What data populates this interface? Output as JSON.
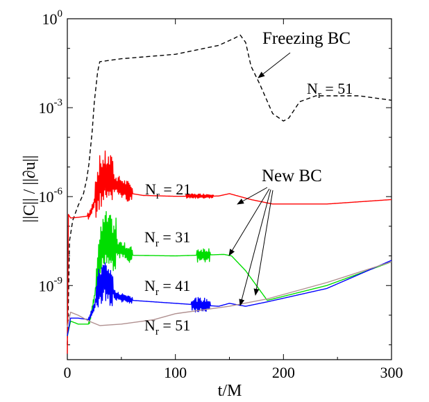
{
  "chart_data": {
    "type": "line",
    "title": "",
    "xlabel": "t/M",
    "ylabel": "||C|| / ||∂u||",
    "xlim": [
      0,
      300
    ],
    "ylim_log10": [
      -11.5,
      0
    ],
    "yscale": "log",
    "x_ticks": [
      {
        "value": 0,
        "label": "0"
      },
      {
        "value": 100,
        "label": "100"
      },
      {
        "value": 200,
        "label": "200"
      },
      {
        "value": 300,
        "label": "300"
      }
    ],
    "y_ticks": [
      {
        "exp": 0,
        "base": "10",
        "sup": "0"
      },
      {
        "exp": -3,
        "base": "10",
        "sup": "-3"
      },
      {
        "exp": -6,
        "base": "10",
        "sup": "-6"
      },
      {
        "exp": -9,
        "base": "10",
        "sup": "-9"
      }
    ],
    "annotations": {
      "freezing": "Freezing BC",
      "new": "New BC",
      "nr_freeze": {
        "n": "N",
        "sub": "r",
        "rest": " = 51"
      },
      "nr21": {
        "n": "N",
        "sub": "r",
        "rest": " = 21"
      },
      "nr31": {
        "n": "N",
        "sub": "r",
        "rest": " = 31"
      },
      "nr41": {
        "n": "N",
        "sub": "r",
        "rest": " = 41"
      },
      "nr51": {
        "n": "N",
        "sub": "r",
        "rest": " = 51"
      }
    },
    "series": [
      {
        "color": "#000000",
        "dash": "6,4",
        "noise": [],
        "points": [
          [
            0,
            -11
          ],
          [
            1,
            -9.5
          ],
          [
            2,
            -7.5
          ],
          [
            5,
            -6.8
          ],
          [
            10,
            -6.3
          ],
          [
            15,
            -5.9
          ],
          [
            18,
            -5.4
          ],
          [
            20,
            -4.9
          ],
          [
            23,
            -3.8
          ],
          [
            25,
            -2.8
          ],
          [
            28,
            -1.8
          ],
          [
            30,
            -1.45
          ],
          [
            50,
            -1.35
          ],
          [
            100,
            -1.2
          ],
          [
            140,
            -0.9
          ],
          [
            155,
            -0.65
          ],
          [
            160,
            -0.55
          ],
          [
            165,
            -0.8
          ],
          [
            170,
            -1.6
          ],
          [
            178,
            -2.2
          ],
          [
            190,
            -3.2
          ],
          [
            200,
            -3.45
          ],
          [
            205,
            -3.35
          ],
          [
            215,
            -2.8
          ],
          [
            230,
            -2.6
          ],
          [
            270,
            -2.6
          ],
          [
            300,
            -2.75
          ]
        ]
      },
      {
        "color": "#ff0000",
        "dash": "",
        "noise": [
          [
            19,
            26,
            0.15
          ],
          [
            26,
            42,
            0.9
          ],
          [
            42,
            60,
            0.35
          ],
          [
            110,
            135,
            0.08
          ]
        ],
        "points": [
          [
            0,
            -11.3
          ],
          [
            1,
            -6.6
          ],
          [
            3,
            -6.72
          ],
          [
            10,
            -6.7
          ],
          [
            20,
            -6.65
          ],
          [
            25,
            -6.2
          ],
          [
            30,
            -5.5
          ],
          [
            35,
            -5.35
          ],
          [
            45,
            -5.6
          ],
          [
            60,
            -5.9
          ],
          [
            70,
            -5.96
          ],
          [
            100,
            -5.99
          ],
          [
            140,
            -5.98
          ],
          [
            150,
            -5.9
          ],
          [
            170,
            -6.1
          ],
          [
            190,
            -6.25
          ],
          [
            240,
            -6.25
          ],
          [
            300,
            -6.1
          ]
        ]
      },
      {
        "color": "#00dd00",
        "dash": "",
        "noise": [
          [
            20,
            27,
            0.12
          ],
          [
            27,
            45,
            0.9
          ],
          [
            45,
            60,
            0.3
          ],
          [
            120,
            132,
            0.25
          ]
        ],
        "points": [
          [
            0,
            -10.7
          ],
          [
            3,
            -10.2
          ],
          [
            10,
            -10.3
          ],
          [
            20,
            -10.3
          ],
          [
            25,
            -9.4
          ],
          [
            30,
            -8.0
          ],
          [
            35,
            -7.35
          ],
          [
            45,
            -7.7
          ],
          [
            60,
            -7.98
          ],
          [
            100,
            -8.0
          ],
          [
            145,
            -7.95
          ],
          [
            152,
            -8.0
          ],
          [
            165,
            -8.5
          ],
          [
            175,
            -9.0
          ],
          [
            185,
            -9.5
          ],
          [
            240,
            -9.0
          ],
          [
            300,
            -8.2
          ]
        ]
      },
      {
        "color": "#0000ff",
        "dash": "",
        "noise": [
          [
            20,
            27,
            0.12
          ],
          [
            27,
            42,
            0.7
          ],
          [
            42,
            60,
            0.15
          ],
          [
            115,
            132,
            0.25
          ]
        ],
        "points": [
          [
            0,
            -10.7
          ],
          [
            3,
            -10.1
          ],
          [
            10,
            -10.1
          ],
          [
            20,
            -10.15
          ],
          [
            25,
            -9.7
          ],
          [
            30,
            -9.0
          ],
          [
            35,
            -8.8
          ],
          [
            45,
            -9.35
          ],
          [
            60,
            -9.5
          ],
          [
            100,
            -9.6
          ],
          [
            140,
            -9.7
          ],
          [
            150,
            -9.6
          ],
          [
            165,
            -9.7
          ],
          [
            185,
            -9.55
          ],
          [
            240,
            -9.1
          ],
          [
            300,
            -8.15
          ]
        ]
      },
      {
        "color": "#b09090",
        "dash": "",
        "noise": [],
        "points": [
          [
            0,
            -10.4
          ],
          [
            3,
            -9.9
          ],
          [
            10,
            -10.0
          ],
          [
            20,
            -10.2
          ],
          [
            30,
            -10.35
          ],
          [
            50,
            -10.3
          ],
          [
            80,
            -10.15
          ],
          [
            100,
            -9.95
          ],
          [
            150,
            -9.7
          ],
          [
            185,
            -9.45
          ],
          [
            240,
            -8.9
          ],
          [
            300,
            -8.2
          ]
        ]
      }
    ]
  }
}
